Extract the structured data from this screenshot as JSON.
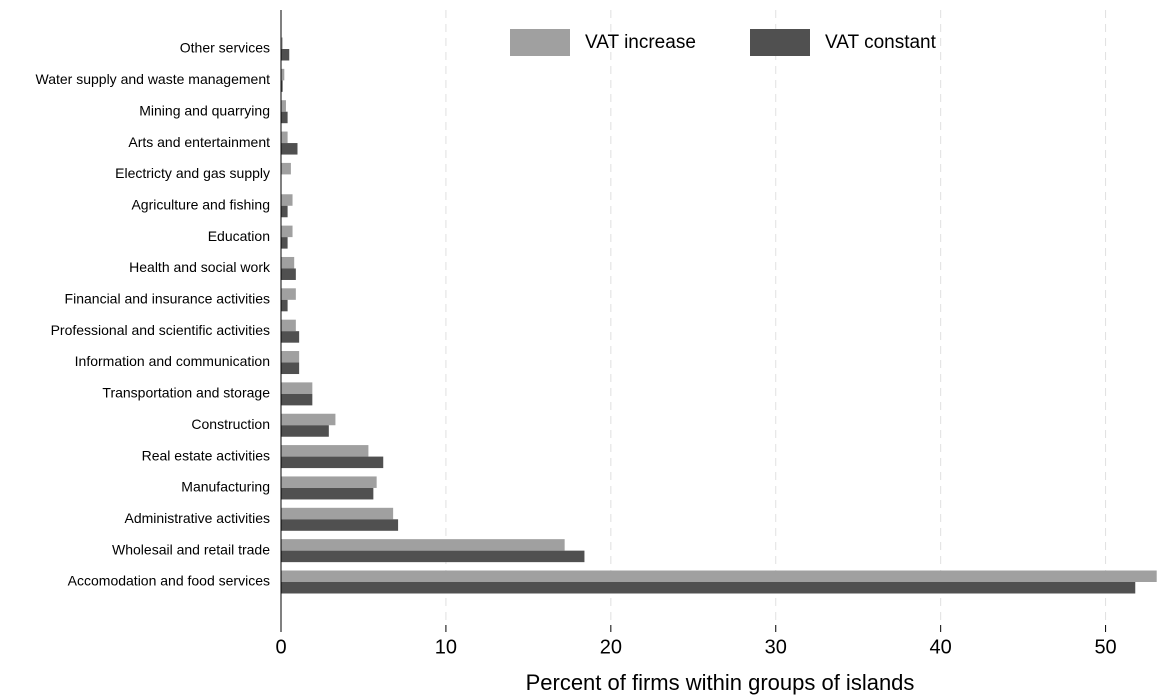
{
  "chart_data": {
    "type": "barh",
    "xlabel": "Percent of firms within groups of islands",
    "categories": [
      "Other services",
      "Water supply and waste management",
      "Mining and quarrying",
      "Arts and entertainment",
      "Electricty and gas supply",
      "Agriculture and fishing",
      "Education",
      "Health and social work",
      "Financial and insurance activities",
      "Professional and scientific activities",
      "Information and communication",
      "Transportation and storage",
      "Construction",
      "Real estate activities",
      "Manufacturing",
      "Administrative activities",
      "Wholesail and retail trade",
      "Accomodation and food services"
    ],
    "series": [
      {
        "name": "VAT increase",
        "color": "#a0a0a0",
        "values": [
          0.1,
          0.2,
          0.3,
          0.4,
          0.6,
          0.7,
          0.7,
          0.8,
          0.9,
          0.9,
          1.1,
          1.9,
          3.3,
          5.3,
          5.8,
          6.8,
          17.2,
          53.1
        ]
      },
      {
        "name": "VAT constant",
        "color": "#505050",
        "values": [
          0.5,
          0.1,
          0.4,
          1.0,
          0,
          0.4,
          0.4,
          0.9,
          0.4,
          1.1,
          1.1,
          1.9,
          2.9,
          6.2,
          5.6,
          7.1,
          18.4,
          51.8
        ]
      }
    ],
    "xlim": [
      0,
      53.3
    ],
    "xticks": [
      0,
      10,
      20,
      30,
      40,
      50
    ],
    "grid": true,
    "legend": "top"
  }
}
